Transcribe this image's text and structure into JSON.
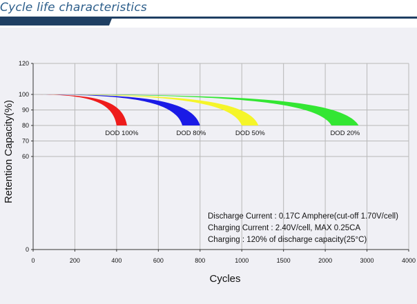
{
  "heading": "Cycle life characteristics",
  "colors": {
    "heading": "#2b5d8a",
    "bar_dark": "#1f3f63",
    "panel": "#f0f0f5",
    "grid": "#b8b8b8"
  },
  "chart_data": {
    "type": "area",
    "title": "",
    "xlabel": "Cycles",
    "ylabel": "Retention Capacity(%)",
    "xticks": [
      "0",
      "200",
      "400",
      "600",
      "800",
      "1000",
      "1500",
      "2000",
      "3000",
      "4000"
    ],
    "ylim": [
      0,
      120
    ],
    "yticks": [
      0,
      60,
      70,
      80,
      90,
      100,
      120
    ],
    "grid": true,
    "series": [
      {
        "name": "DOD 100%",
        "color": "#ee1c1c",
        "end_cycles": [
          400,
          450
        ],
        "end_capacity": 80
      },
      {
        "name": "DOD 80%",
        "color": "#1a1ae6",
        "end_cycles": [
          715,
          800
        ],
        "end_capacity": 80
      },
      {
        "name": "DOD 50%",
        "color": "#f5f52a",
        "end_cycles": [
          1000,
          1200
        ],
        "end_capacity": 80
      },
      {
        "name": "DOD 20%",
        "color": "#33e633",
        "end_cycles": [
          2150,
          2800
        ],
        "end_capacity": 80
      }
    ],
    "annotations": [
      "Discharge Current : 0.17C Amphere(cut-off 1.70V/cell)",
      "Charging Current : 2.40V/cell, MAX 0.25CA",
      "Charging : 120% of discharge capacity(25°C)"
    ]
  }
}
